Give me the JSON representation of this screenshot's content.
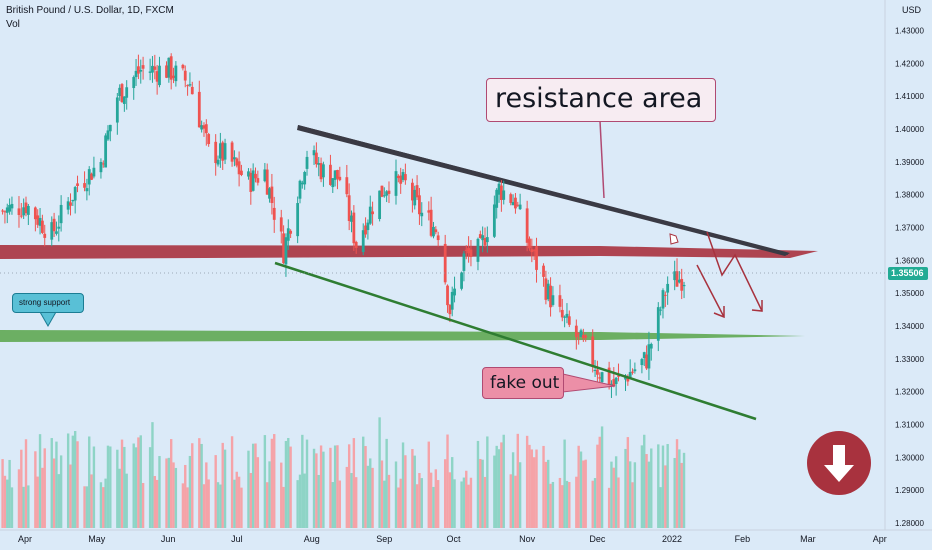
{
  "header": {
    "title": "British Pound / U.S. Dollar, 1D, FXCM",
    "indicator": "Vol",
    "currency": "USD"
  },
  "annotations": {
    "resistance": "resistance area",
    "fake_out": "fake out",
    "support": "strong support"
  },
  "last_price": "1.35506",
  "colors": {
    "up": "#26a69a",
    "down": "#ef5350",
    "vol_up": "#8ed4c6",
    "vol_down": "#f5a3a8",
    "resistance_band": "#a8323e",
    "support_band": "#5fa852",
    "channel_top": "#3a3a44",
    "channel_bottom": "#2e7d32",
    "background": "#dbeaf8"
  },
  "icons": {
    "arrow_badge": "down-arrow-icon"
  },
  "chart_data": {
    "type": "candlestick",
    "title": "British Pound / U.S. Dollar, 1D, FXCM",
    "y_ticks": [
      "1.42000",
      "1.41000",
      "1.40000",
      "1.39000",
      "1.38000",
      "1.37000",
      "1.36000",
      "1.35000",
      "1.34000",
      "1.33000",
      "1.32000",
      "1.31000",
      "1.30000",
      "1.29000",
      "1.28000"
    ],
    "y_tick_values": [
      1.42,
      1.41,
      1.4,
      1.39,
      1.38,
      1.37,
      1.36,
      1.35,
      1.34,
      1.33,
      1.32,
      1.31,
      1.3,
      1.29,
      1.28
    ],
    "y_top_label": "1.43000",
    "ylim": [
      1.2785,
      1.4335
    ],
    "x_labels": [
      "Apr",
      "May",
      "Jun",
      "Jul",
      "Aug",
      "Sep",
      "Oct",
      "Nov",
      "Dec",
      "2022",
      "Feb",
      "Mar",
      "Apr"
    ],
    "close_path": [
      [
        "2021-03-22",
        1.375
      ],
      [
        "2021-04-01",
        1.377
      ],
      [
        "2021-04-12",
        1.368
      ],
      [
        "2021-04-23",
        1.383
      ],
      [
        "2021-05-03",
        1.39
      ],
      [
        "2021-05-10",
        1.41
      ],
      [
        "2021-05-20",
        1.418
      ],
      [
        "2021-06-01",
        1.418
      ],
      [
        "2021-06-10",
        1.414
      ],
      [
        "2021-06-18",
        1.393
      ],
      [
        "2021-06-25",
        1.392
      ],
      [
        "2021-07-05",
        1.384
      ],
      [
        "2021-07-12",
        1.387
      ],
      [
        "2021-07-20",
        1.363
      ],
      [
        "2021-07-30",
        1.393
      ],
      [
        "2021-08-06",
        1.387
      ],
      [
        "2021-08-13",
        1.385
      ],
      [
        "2021-08-20",
        1.365
      ],
      [
        "2021-08-27",
        1.377
      ],
      [
        "2021-09-03",
        1.384
      ],
      [
        "2021-09-10",
        1.383
      ],
      [
        "2021-09-17",
        1.374
      ],
      [
        "2021-09-24",
        1.369
      ],
      [
        "2021-09-29",
        1.345
      ],
      [
        "2021-10-05",
        1.361
      ],
      [
        "2021-10-12",
        1.363
      ],
      [
        "2021-10-20",
        1.382
      ],
      [
        "2021-10-27",
        1.378
      ],
      [
        "2021-11-01",
        1.366
      ],
      [
        "2021-11-10",
        1.35
      ],
      [
        "2021-11-15",
        1.343
      ],
      [
        "2021-11-25",
        1.334
      ],
      [
        "2021-12-03",
        1.325
      ],
      [
        "2021-12-08",
        1.322
      ],
      [
        "2021-12-17",
        1.327
      ],
      [
        "2021-12-22",
        1.33
      ],
      [
        "2021-12-31",
        1.353
      ],
      [
        "2022-01-07",
        1.355
      ]
    ],
    "volume_note": "Vol series bars at bottom pane",
    "volume_range": [
      0,
      1
    ]
  }
}
